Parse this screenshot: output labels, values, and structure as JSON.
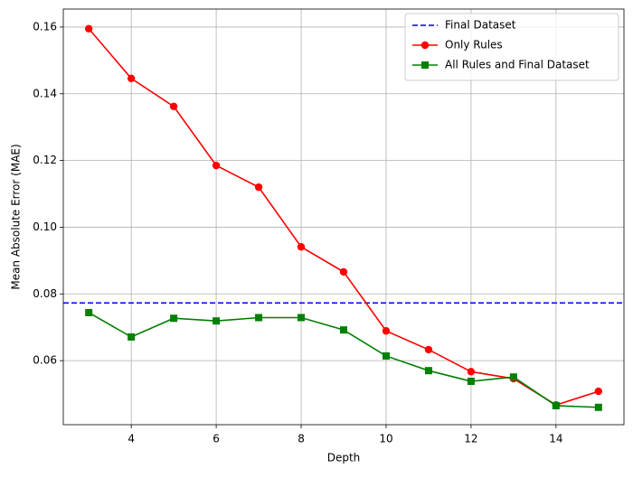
{
  "chart_data": {
    "type": "line",
    "x_label": "Depth",
    "y_label": "Mean Absolute Error (MAE)",
    "x": [
      3,
      4,
      5,
      6,
      7,
      8,
      9,
      10,
      11,
      12,
      13,
      14,
      15
    ],
    "xlim": [
      2.4,
      15.6
    ],
    "xticks": [
      4,
      6,
      8,
      10,
      12,
      14
    ],
    "ylim": [
      0.0408,
      0.1654
    ],
    "yticks": [
      0.06,
      0.08,
      {
        "value": 0.1,
        "label": "0.10"
      },
      0.12,
      0.14,
      0.16
    ],
    "grid": true,
    "legend": "upper right",
    "series": [
      {
        "name": "Final Dataset",
        "color": "#0000ff",
        "linestyle": "dashed",
        "hline": 0.0773
      },
      {
        "name": "Only Rules",
        "color": "#ff0000",
        "marker": "circle",
        "values": [
          0.1595,
          0.1446,
          0.1362,
          0.1185,
          0.112,
          0.0941,
          0.0866,
          0.0689,
          0.0633,
          0.0567,
          0.0546,
          0.0467,
          0.0508
        ]
      },
      {
        "name": "All Rules and Final Dataset",
        "color": "#008000",
        "marker": "square",
        "values": [
          0.0744,
          0.0671,
          0.0727,
          0.0719,
          0.0729,
          0.0729,
          0.0692,
          0.0614,
          0.057,
          0.0538,
          0.0551,
          0.0465,
          0.046
        ]
      }
    ]
  }
}
